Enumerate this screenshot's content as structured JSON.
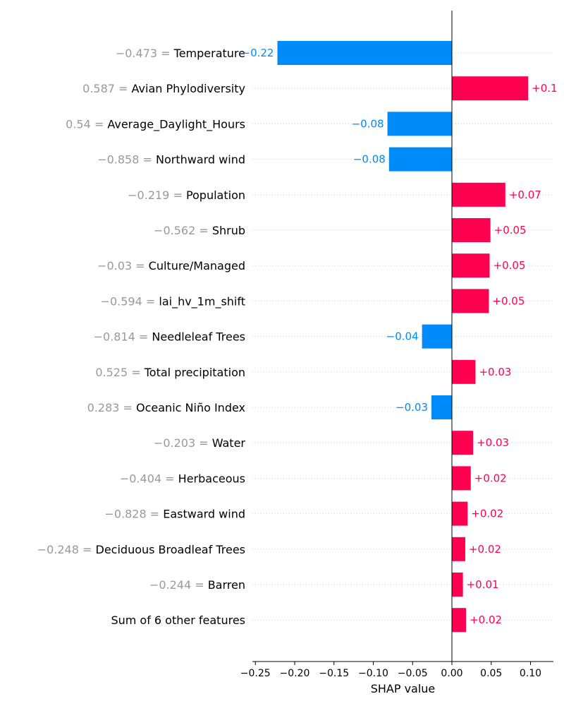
{
  "chart_data": {
    "type": "bar",
    "orientation": "horizontal",
    "xlabel": "SHAP value",
    "xlim": [
      -0.26,
      0.13
    ],
    "xticks": [
      -0.25,
      -0.2,
      -0.15,
      -0.1,
      -0.05,
      0.0,
      0.05,
      0.1
    ],
    "xtick_labels": [
      "−0.25",
      "−0.20",
      "−0.15",
      "−0.10",
      "−0.05",
      "0.00",
      "0.05",
      "0.10"
    ],
    "colors": {
      "positive": "#ff0051",
      "negative": "#008bfb",
      "value_text": "#999999"
    },
    "features": [
      {
        "value": "−0.473",
        "name": "Temperature",
        "shap": -0.222,
        "label": "−0.22"
      },
      {
        "value": "0.587",
        "name": "Avian Phylodiversity",
        "shap": 0.097,
        "label": "+0.1"
      },
      {
        "value": "0.54",
        "name": "Average_Daylight_Hours",
        "shap": -0.082,
        "label": "−0.08"
      },
      {
        "value": "−0.858",
        "name": "Northward wind",
        "shap": -0.08,
        "label": "−0.08"
      },
      {
        "value": "−0.219",
        "name": "Population",
        "shap": 0.068,
        "label": "+0.07"
      },
      {
        "value": "−0.562",
        "name": "Shrub",
        "shap": 0.049,
        "label": "+0.05"
      },
      {
        "value": "−0.03",
        "name": "Culture/Managed",
        "shap": 0.048,
        "label": "+0.05"
      },
      {
        "value": "−0.594",
        "name": "lai_hv_1m_shift",
        "shap": 0.047,
        "label": "+0.05"
      },
      {
        "value": "−0.814",
        "name": "Needleleaf Trees",
        "shap": -0.038,
        "label": "−0.04"
      },
      {
        "value": "0.525",
        "name": "Total precipitation",
        "shap": 0.03,
        "label": "+0.03"
      },
      {
        "value": "0.283",
        "name": "Oceanic Niño Index",
        "shap": -0.026,
        "label": "−0.03"
      },
      {
        "value": "−0.203",
        "name": "Water",
        "shap": 0.027,
        "label": "+0.03"
      },
      {
        "value": "−0.404",
        "name": "Herbaceous",
        "shap": 0.024,
        "label": "+0.02"
      },
      {
        "value": "−0.828",
        "name": "Eastward wind",
        "shap": 0.02,
        "label": "+0.02"
      },
      {
        "value": "−0.248",
        "name": "Deciduous Broadleaf Trees",
        "shap": 0.017,
        "label": "+0.02"
      },
      {
        "value": "−0.244",
        "name": "Barren",
        "shap": 0.014,
        "label": "+0.01"
      },
      {
        "value": "",
        "name": "Sum of 6 other features",
        "shap": 0.018,
        "label": "+0.02"
      }
    ]
  }
}
